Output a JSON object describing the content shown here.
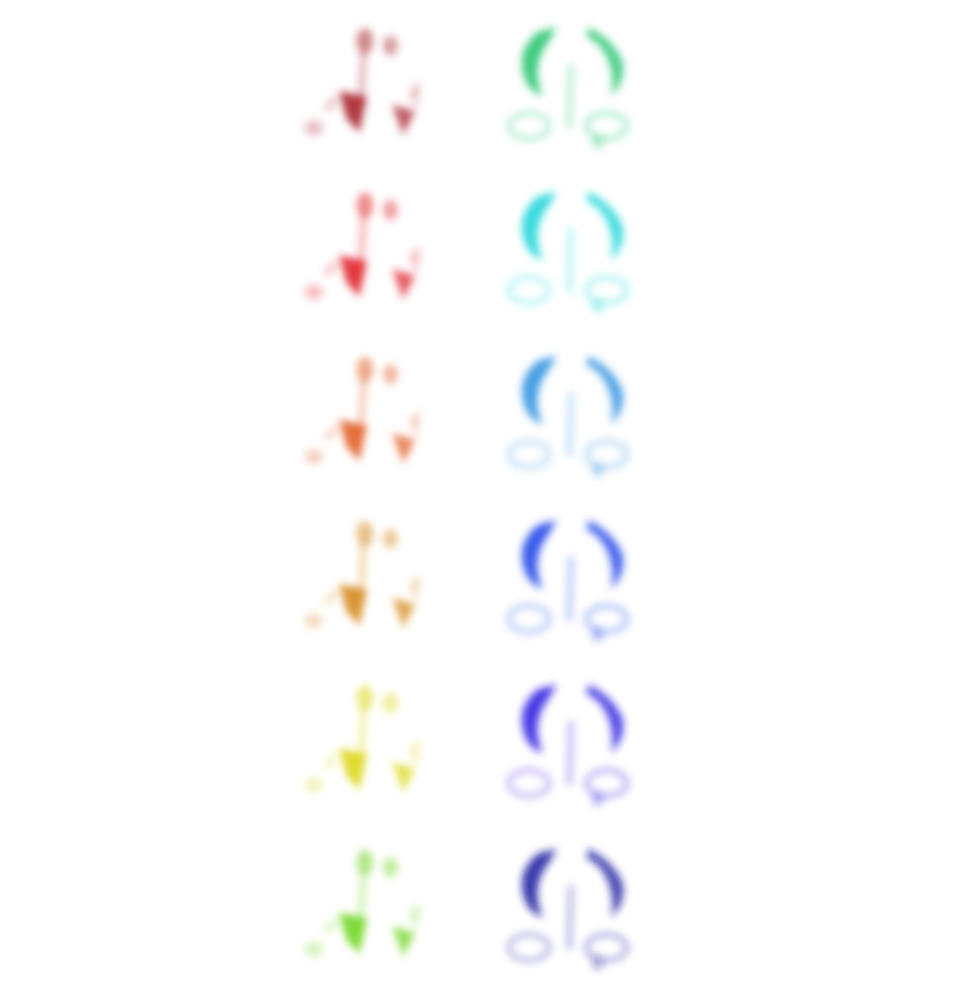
{
  "rows": [
    {
      "left": {
        "color": "#a8242c"
      },
      "right": {
        "color": "#22c36a"
      }
    },
    {
      "left": {
        "color": "#e0242c"
      },
      "right": {
        "color": "#16d4d8"
      }
    },
    {
      "left": {
        "color": "#e2602a"
      },
      "right": {
        "color": "#2a8ee0"
      }
    },
    {
      "left": {
        "color": "#d68a1c"
      },
      "right": {
        "color": "#1a3ee8"
      }
    },
    {
      "left": {
        "color": "#dcd818"
      },
      "right": {
        "color": "#2818e0"
      }
    },
    {
      "left": {
        "color": "#72d624"
      },
      "right": {
        "color": "#1a1aa0"
      }
    }
  ]
}
